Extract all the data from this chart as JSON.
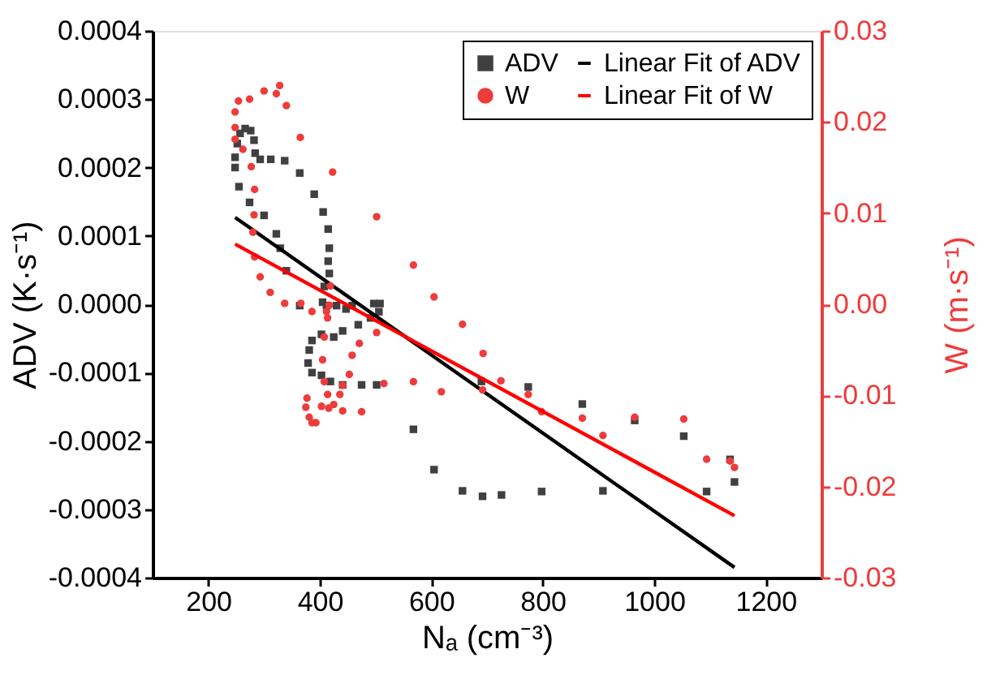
{
  "chart_data": {
    "type": "scatter",
    "xlabel": "Nₐ (cm⁻³)",
    "ylabel": "ADV (K·s⁻¹)",
    "y2label": "W (m·s⁻¹)",
    "xlim": [
      100,
      1300
    ],
    "xticks": [
      200,
      400,
      600,
      800,
      1000,
      1200
    ],
    "ylim": [
      -0.0004,
      0.0004
    ],
    "yticks": [
      {
        "value": -0.0004,
        "label": "-0.0004"
      },
      {
        "value": -0.0003,
        "label": "-0.0003"
      },
      {
        "value": -0.0002,
        "label": "-0.0002"
      },
      {
        "value": -0.0001,
        "label": "-0.0001"
      },
      {
        "value": 0,
        "label": "0.0000"
      },
      {
        "value": 0.0001,
        "label": "0.0001"
      },
      {
        "value": 0.0002,
        "label": "0.0002"
      },
      {
        "value": 0.0003,
        "label": "0.0003"
      },
      {
        "value": 0.0004,
        "label": "0.0004"
      }
    ],
    "y2lim": [
      -0.03,
      0.03
    ],
    "y2ticks": [
      {
        "value": -0.03,
        "label": "-0.03"
      },
      {
        "value": -0.02,
        "label": "-0.02"
      },
      {
        "value": -0.01,
        "label": "-0.01"
      },
      {
        "value": 0,
        "label": "0.00"
      },
      {
        "value": 0.01,
        "label": "0.01"
      },
      {
        "value": 0.02,
        "label": "0.02"
      },
      {
        "value": 0.03,
        "label": "0.03"
      }
    ],
    "grid": false,
    "legend": "top right",
    "series": [
      {
        "name": "ADV",
        "marker": "square",
        "color": "#404040",
        "axis": "y",
        "x": [
          248,
          248,
          252,
          257,
          266,
          276,
          282,
          284,
          293,
          312,
          337,
          255,
          274,
          300,
          322,
          329,
          340,
          364,
          390,
          406,
          415,
          417,
          415,
          417,
          408,
          405,
          412,
          364,
          430,
          447,
          458,
          497,
          508,
          506,
          491,
          469,
          441,
          425,
          403,
          386,
          381,
          379,
          386,
          403,
          419,
          441,
          475,
          502,
          568,
          605,
          656,
          692,
          726,
          798,
          690,
          774,
          871,
          965,
          1053,
          1094,
          1136,
          1144,
          908
        ],
        "values": [
          0.0002,
          0.000215,
          0.000235,
          0.00025,
          0.000257,
          0.000254,
          0.00024,
          0.000221,
          0.000212,
          0.000212,
          0.00021,
          0.000172,
          0.000149,
          0.00013,
          0.000103,
          8.2e-05,
          4.9e-05,
          0.000192,
          0.000161,
          0.000135,
          0.00011,
          8.2e-05,
          6.3e-05,
          4.5e-05,
          2.6e-05,
          3e-06,
          -2e-06,
          -2e-06,
          -2e-06,
          -7e-06,
          -2e-06,
          1e-06,
          1e-06,
          -1.1e-05,
          -2e-05,
          -3e-05,
          -3.9e-05,
          -4.8e-05,
          -4.4e-05,
          -5.3e-05,
          -6.7e-05,
          -8.6e-05,
          -0.0001,
          -0.000104,
          -0.000113,
          -0.000118,
          -0.000118,
          -0.000118,
          -0.000183,
          -0.000242,
          -0.000273,
          -0.000281,
          -0.000279,
          -0.000274,
          -0.000113,
          -0.000121,
          -0.000146,
          -0.00017,
          -0.000193,
          -0.000274,
          -0.000227,
          -0.00026,
          -0.000273
        ]
      },
      {
        "name": "Linear Fit of ADV",
        "type": "line",
        "marker": "none",
        "color": "#000000",
        "axis": "y",
        "x": [
          248,
          1144
        ],
        "values": [
          0.000127,
          -0.000385
        ]
      },
      {
        "name": "W",
        "marker": "circle",
        "color": "#ee3b3b",
        "axis": "y2",
        "x": [
          248,
          248,
          254,
          274,
          300,
          322,
          328,
          340,
          365,
          248,
          262,
          277,
          283,
          282,
          280,
          283,
          293,
          311,
          337,
          366,
          423,
          502,
          568,
          605,
          656,
          693,
          725,
          692,
          774,
          798,
          871,
          908,
          965,
          1053,
          1094,
          1136,
          1144,
          618,
          568,
          515,
          502,
          471,
          458,
          453,
          441,
          441,
          475,
          425,
          414,
          408,
          405,
          408,
          414,
          417,
          419,
          412,
          386,
          377,
          375,
          381,
          386,
          393,
          403,
          416,
          436
        ],
        "values": [
          0.0211,
          0.0194,
          0.0223,
          0.0225,
          0.0234,
          0.0231,
          0.024,
          0.0218,
          0.0183,
          0.0181,
          0.017,
          0.0151,
          0.0126,
          0.0098,
          0.0079,
          0.0052,
          0.003,
          0.0013,
          0.0001,
          0.0001,
          0.0145,
          0.0096,
          0.0043,
          0.0008,
          -0.0022,
          -0.0054,
          -0.0084,
          -0.0094,
          -0.0099,
          -0.0118,
          -0.0125,
          -0.0144,
          -0.0124,
          -0.0126,
          -0.017,
          -0.0172,
          -0.0179,
          -0.0096,
          -0.0085,
          -0.0087,
          -0.0031,
          -0.0043,
          -0.0056,
          -0.0077,
          -0.0089,
          -0.0117,
          -0.0118,
          -0.011,
          -0.0099,
          -0.0085,
          -0.0061,
          -0.0036,
          -0.0015,
          -0.0001,
          0.002,
          -0.0008,
          -0.0008,
          -0.0103,
          -0.0113,
          -0.0124,
          -0.013,
          -0.013,
          -0.0112,
          -0.0114,
          -0.0099
        ]
      },
      {
        "name": "Linear Fit of W",
        "type": "line",
        "marker": "none",
        "color": "#ff0000",
        "axis": "y2",
        "x": [
          248,
          1144
        ],
        "values": [
          0.0066,
          -0.0232
        ]
      }
    ]
  }
}
